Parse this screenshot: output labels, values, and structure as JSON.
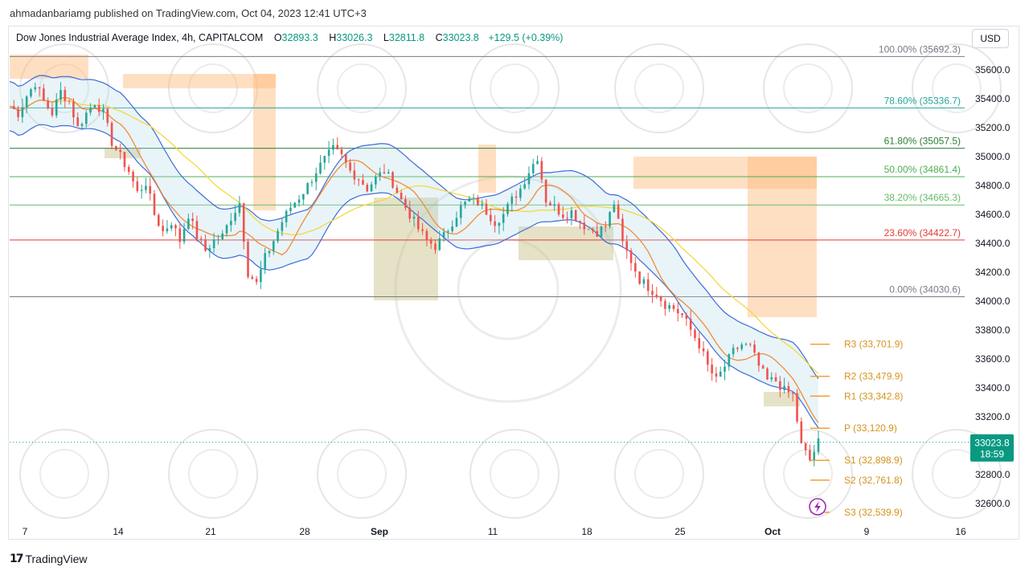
{
  "header": {
    "published": "ahmadanbariamg published on TradingView.com, Oct 04, 2023 12:41 UTC+3"
  },
  "legend": {
    "symbol": "Dow Jones Industrial Average Index, 4h, CAPITALCOM",
    "o_label": "O",
    "o_value": "32893.3",
    "h_label": "H",
    "h_value": "33026.3",
    "l_label": "L",
    "l_value": "32811.8",
    "c_label": "C",
    "c_value": "33023.8",
    "change": "+129.5 (+0.39%)"
  },
  "currency_button": "USD",
  "footer": {
    "brand": "TradingView"
  },
  "colors": {
    "up": "#26a69a",
    "down": "#ef5350",
    "bb": "#3f6ad8",
    "ema_fast": "#f28c38",
    "ema_slow": "#f5d742",
    "pivot": "#f0a030",
    "last_price_bg": "#089981"
  },
  "chart_data": {
    "type": "candlestick",
    "symbol": "Dow Jones Industrial Average Index",
    "interval": "4h",
    "ylim": [
      32520,
      35780
    ],
    "y_ticks": [
      "35600.0",
      "35400.0",
      "35200.0",
      "35000.0",
      "34800.0",
      "34600.0",
      "34400.0",
      "34200.0",
      "34000.0",
      "33800.0",
      "33600.0",
      "33400.0",
      "33200.0",
      "33000.0",
      "32800.0",
      "32600.0"
    ],
    "x_ticks": [
      "7",
      "14",
      "21",
      "28",
      "Sep",
      "11",
      "18",
      "25",
      "Oct",
      "9",
      "16"
    ],
    "last_price": {
      "value": "33023.8",
      "countdown": "18:59"
    },
    "fibonacci": [
      {
        "label": "100.00% (35692.3)",
        "level": 35692.3,
        "color": "#787b86"
      },
      {
        "label": "78.60% (35336.7)",
        "level": 35336.7,
        "color": "#26a69a"
      },
      {
        "label": "61.80% (35057.5)",
        "level": 35057.5,
        "color": "#2e7d32"
      },
      {
        "label": "50.00% (34861.4)",
        "level": 34861.4,
        "color": "#4caf50"
      },
      {
        "label": "38.20% (34665.3)",
        "level": 34665.3,
        "color": "#66bb6a"
      },
      {
        "label": "23.60% (34422.7)",
        "level": 34422.7,
        "color": "#e53935"
      },
      {
        "label": "0.00% (34030.6)",
        "level": 34030.6,
        "color": "#787b86"
      }
    ],
    "pivots": [
      {
        "label": "R3 (33,701.9)",
        "level": 33701.9
      },
      {
        "label": "R2 (33,479.9)",
        "level": 33479.9
      },
      {
        "label": "R1 (33,342.8)",
        "level": 33342.8
      },
      {
        "label": "P (33,120.9)",
        "level": 33120.9
      },
      {
        "label": "S1 (32,898.9)",
        "level": 32898.9
      },
      {
        "label": "S2 (32,761.8)",
        "level": 32761.8
      },
      {
        "label": "S3 (32,539.9)",
        "level": 32539.9
      }
    ],
    "price_path": [
      [
        0,
        35350
      ],
      [
        4,
        35300
      ],
      [
        8,
        35420
      ],
      [
        12,
        35510
      ],
      [
        16,
        35380
      ],
      [
        20,
        35300
      ],
      [
        24,
        35450
      ],
      [
        28,
        35380
      ],
      [
        32,
        35200
      ],
      [
        36,
        35300
      ],
      [
        40,
        35380
      ],
      [
        44,
        35300
      ],
      [
        48,
        35100
      ],
      [
        52,
        35000
      ],
      [
        56,
        34900
      ],
      [
        60,
        34750
      ],
      [
        64,
        34820
      ],
      [
        68,
        34600
      ],
      [
        72,
        34480
      ],
      [
        76,
        34550
      ],
      [
        80,
        34420
      ],
      [
        84,
        34600
      ],
      [
        88,
        34450
      ],
      [
        92,
        34350
      ],
      [
        96,
        34420
      ],
      [
        100,
        34450
      ],
      [
        104,
        34580
      ],
      [
        108,
        34680
      ],
      [
        112,
        34200
      ],
      [
        116,
        34120
      ],
      [
        120,
        34300
      ],
      [
        124,
        34420
      ],
      [
        128,
        34550
      ],
      [
        132,
        34650
      ],
      [
        136,
        34720
      ],
      [
        140,
        34800
      ],
      [
        144,
        34900
      ],
      [
        148,
        34980
      ],
      [
        152,
        35050
      ],
      [
        156,
        35000
      ],
      [
        160,
        34900
      ],
      [
        164,
        34850
      ],
      [
        168,
        34780
      ],
      [
        172,
        34850
      ],
      [
        176,
        34900
      ],
      [
        180,
        34820
      ],
      [
        184,
        34700
      ],
      [
        188,
        34600
      ],
      [
        192,
        34500
      ],
      [
        196,
        34420
      ],
      [
        200,
        34380
      ],
      [
        204,
        34450
      ],
      [
        208,
        34550
      ],
      [
        212,
        34650
      ],
      [
        216,
        34700
      ],
      [
        220,
        34680
      ],
      [
        224,
        34620
      ],
      [
        228,
        34550
      ],
      [
        232,
        34600
      ],
      [
        236,
        34700
      ],
      [
        240,
        34780
      ],
      [
        244,
        34900
      ],
      [
        248,
        35000
      ],
      [
        252,
        34700
      ],
      [
        256,
        34650
      ],
      [
        260,
        34600
      ],
      [
        264,
        34620
      ],
      [
        268,
        34550
      ],
      [
        272,
        34500
      ],
      [
        276,
        34480
      ],
      [
        280,
        34520
      ],
      [
        284,
        34680
      ],
      [
        288,
        34400
      ],
      [
        292,
        34280
      ],
      [
        296,
        34150
      ],
      [
        300,
        34100
      ],
      [
        304,
        34050
      ],
      [
        308,
        33980
      ],
      [
        312,
        33950
      ],
      [
        316,
        33900
      ],
      [
        320,
        33800
      ],
      [
        324,
        33700
      ],
      [
        328,
        33550
      ],
      [
        332,
        33450
      ],
      [
        336,
        33550
      ],
      [
        340,
        33650
      ],
      [
        344,
        33700
      ],
      [
        348,
        33680
      ],
      [
        352,
        33550
      ],
      [
        356,
        33450
      ],
      [
        360,
        33450
      ],
      [
        364,
        33380
      ],
      [
        368,
        33350
      ],
      [
        372,
        33000
      ],
      [
        376,
        32900
      ],
      [
        380,
        33023
      ]
    ]
  }
}
